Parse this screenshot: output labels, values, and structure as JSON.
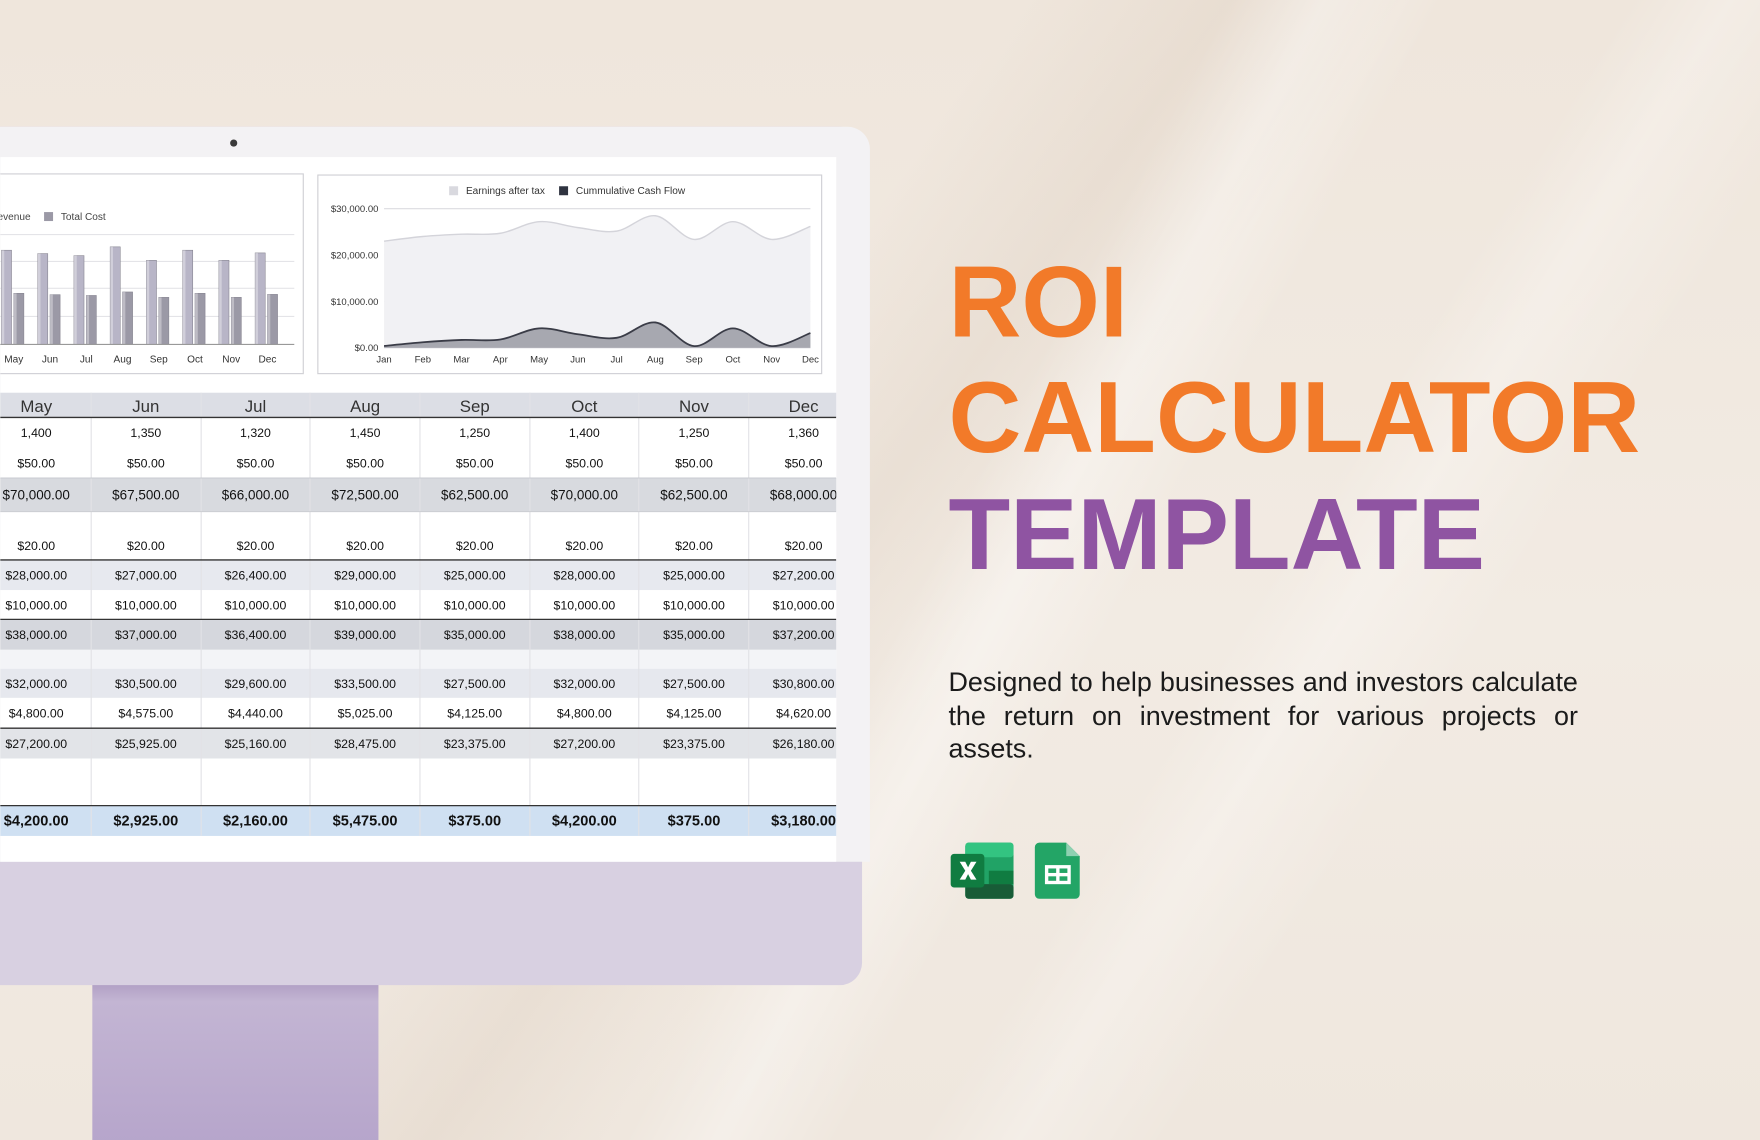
{
  "hero": {
    "title_lines": [
      "ROI",
      "CALCULATOR",
      "TEMPLATE"
    ],
    "description": "Designed to help businesses and investors calculate the return on investment for various projects or assets."
  },
  "chart_data": [
    {
      "type": "bar",
      "categories": [
        "May",
        "Jun",
        "Jul",
        "Aug",
        "Sep",
        "Oct",
        "Nov",
        "Dec"
      ],
      "series": [
        {
          "name": "evenue",
          "color": "#b8b5c7",
          "values": [
            70000,
            67500,
            66000,
            72500,
            62500,
            70000,
            62500,
            68000
          ]
        },
        {
          "name": "Total Cost",
          "color": "#9b99a6",
          "values": [
            38000,
            37000,
            36400,
            39000,
            35000,
            38000,
            35000,
            37200
          ]
        }
      ],
      "ylim": [
        0,
        80000
      ]
    },
    {
      "type": "area",
      "categories": [
        "Jan",
        "Feb",
        "Mar",
        "Apr",
        "May",
        "Jun",
        "Jul",
        "Aug",
        "Sep",
        "Oct",
        "Nov",
        "Dec"
      ],
      "series": [
        {
          "name": "Earnings after tax",
          "color": "#d9d9df",
          "values": [
            23000,
            24000,
            24500,
            24700,
            27200,
            25925,
            25160,
            28475,
            23375,
            27200,
            23375,
            26180
          ]
        },
        {
          "name": "Cummulative Cash Flow",
          "color": "#2f3340",
          "values": [
            400,
            1200,
            1700,
            1800,
            4200,
            2925,
            2160,
            5475,
            375,
            4200,
            375,
            3180
          ]
        }
      ],
      "ylim": [
        0,
        30000
      ],
      "yticks": [
        {
          "value": 0,
          "label": "$0.00"
        },
        {
          "value": 10000,
          "label": "$10,000.00"
        },
        {
          "value": 20000,
          "label": "$20,000.00"
        },
        {
          "value": 30000,
          "label": "$30,000.00"
        }
      ],
      "grid": true
    }
  ],
  "table": {
    "columns": [
      "May",
      "Jun",
      "Jul",
      "Aug",
      "Sep",
      "Oct",
      "Nov",
      "Dec"
    ],
    "rows": [
      [
        "1,400",
        "1,350",
        "1,320",
        "1,450",
        "1,250",
        "1,400",
        "1,250",
        "1,360"
      ],
      [
        "$50.00",
        "$50.00",
        "$50.00",
        "$50.00",
        "$50.00",
        "$50.00",
        "$50.00",
        "$50.00"
      ],
      [
        "$70,000.00",
        "$67,500.00",
        "$66,000.00",
        "$72,500.00",
        "$62,500.00",
        "$70,000.00",
        "$62,500.00",
        "$68,000.00"
      ],
      [
        "$20.00",
        "$20.00",
        "$20.00",
        "$20.00",
        "$20.00",
        "$20.00",
        "$20.00",
        "$20.00"
      ],
      [
        "$28,000.00",
        "$27,000.00",
        "$26,400.00",
        "$29,000.00",
        "$25,000.00",
        "$28,000.00",
        "$25,000.00",
        "$27,200.00"
      ],
      [
        "$10,000.00",
        "$10,000.00",
        "$10,000.00",
        "$10,000.00",
        "$10,000.00",
        "$10,000.00",
        "$10,000.00",
        "$10,000.00"
      ],
      [
        "$38,000.00",
        "$37,000.00",
        "$36,400.00",
        "$39,000.00",
        "$35,000.00",
        "$38,000.00",
        "$35,000.00",
        "$37,200.00"
      ],
      [
        "$32,000.00",
        "$30,500.00",
        "$29,600.00",
        "$33,500.00",
        "$27,500.00",
        "$32,000.00",
        "$27,500.00",
        "$30,800.00"
      ],
      [
        "$4,800.00",
        "$4,575.00",
        "$4,440.00",
        "$5,025.00",
        "$4,125.00",
        "$4,800.00",
        "$4,125.00",
        "$4,620.00"
      ],
      [
        "$27,200.00",
        "$25,925.00",
        "$25,160.00",
        "$28,475.00",
        "$23,375.00",
        "$27,200.00",
        "$23,375.00",
        "$26,180.00"
      ],
      [
        "$4,200.00",
        "$2,925.00",
        "$2,160.00",
        "$5,475.00",
        "$375.00",
        "$4,200.00",
        "$375.00",
        "$3,180.00"
      ]
    ]
  }
}
